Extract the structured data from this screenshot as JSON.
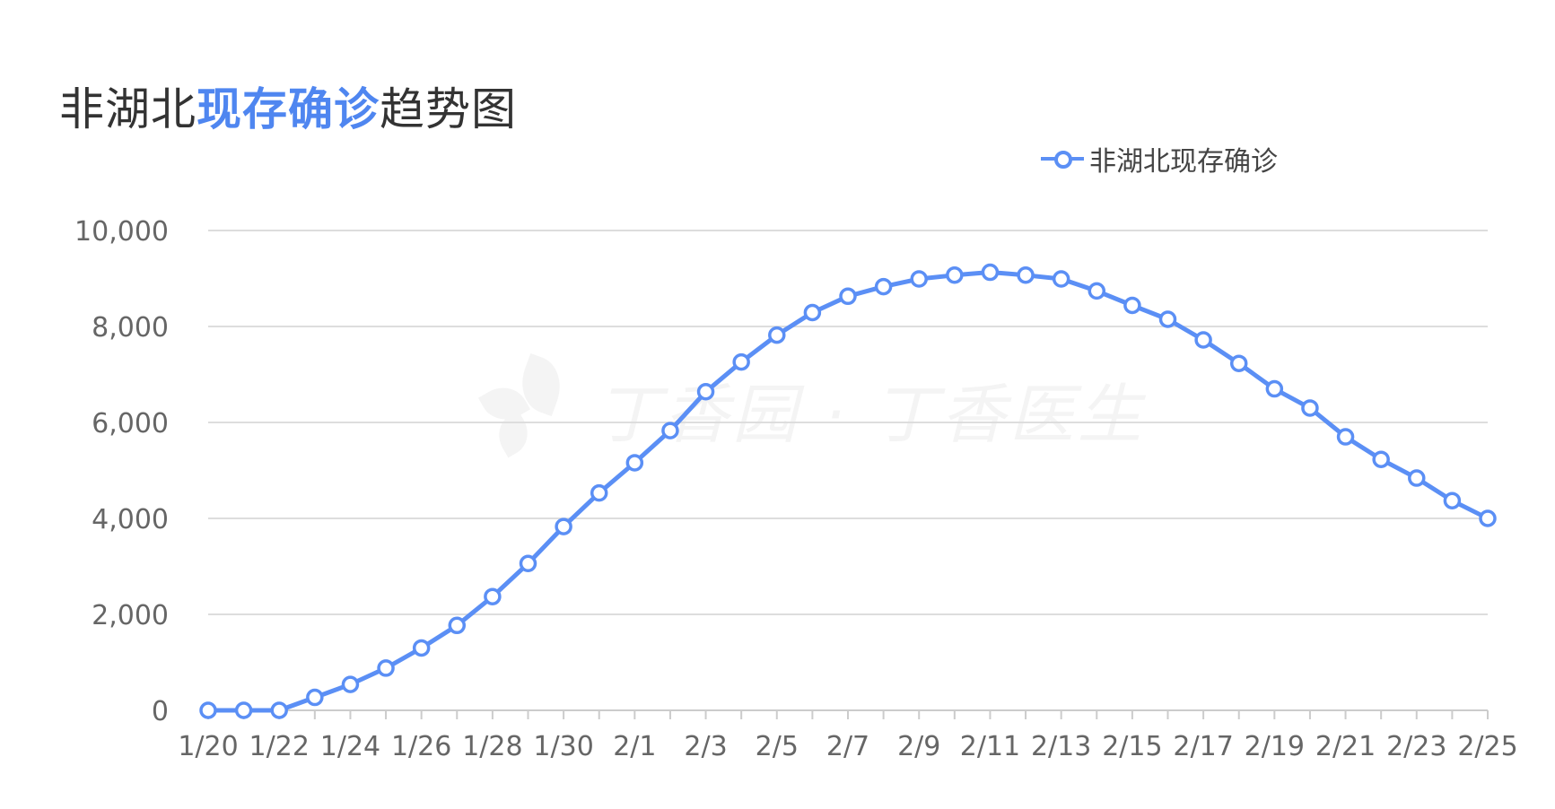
{
  "title": {
    "prefix": "非湖北",
    "highlight": "现存确诊",
    "suffix": "趋势图"
  },
  "legend": {
    "label": "非湖北现存确诊"
  },
  "watermark": {
    "text": "丁香园 · 丁香医生"
  },
  "colors": {
    "series": "#5b8ff5",
    "grid": "#dddddd",
    "axis_text": "#666666",
    "title_highlight": "#4f86f0"
  },
  "chart_data": {
    "type": "line",
    "title": "非湖北现存确诊趋势图",
    "xlabel": "",
    "ylabel": "",
    "ylim": [
      0,
      10000
    ],
    "yticks": [
      0,
      2000,
      4000,
      6000,
      8000,
      10000
    ],
    "ytick_labels": [
      "0",
      "2,000",
      "4,000",
      "6,000",
      "8,000",
      "10,000"
    ],
    "xtick_labels": [
      "1/20",
      "1/22",
      "1/24",
      "1/26",
      "1/28",
      "1/30",
      "2/1",
      "2/3",
      "2/5",
      "2/7",
      "2/9",
      "2/11",
      "2/13",
      "2/15",
      "2/17",
      "2/19",
      "2/21",
      "2/23",
      "2/25"
    ],
    "grid": true,
    "legend_position": "top-right",
    "x": [
      "1/20",
      "1/21",
      "1/22",
      "1/23",
      "1/24",
      "1/25",
      "1/26",
      "1/27",
      "1/28",
      "1/29",
      "1/30",
      "1/31",
      "2/1",
      "2/2",
      "2/3",
      "2/4",
      "2/5",
      "2/6",
      "2/7",
      "2/8",
      "2/9",
      "2/10",
      "2/11",
      "2/12",
      "2/13",
      "2/14",
      "2/15",
      "2/16",
      "2/17",
      "2/18",
      "2/19",
      "2/20",
      "2/21",
      "2/22",
      "2/23",
      "2/24",
      "2/25"
    ],
    "series": [
      {
        "name": "非湖北现存确诊",
        "values": [
          0,
          0,
          0,
          270,
          540,
          880,
          1300,
          1770,
          2370,
          3060,
          3830,
          4530,
          5160,
          5830,
          6640,
          7260,
          7820,
          8290,
          8630,
          8830,
          8990,
          9070,
          9130,
          9070,
          8990,
          8740,
          8440,
          8150,
          7720,
          7230,
          6700,
          6300,
          5700,
          5230,
          4840,
          4370,
          4000
        ]
      }
    ]
  }
}
